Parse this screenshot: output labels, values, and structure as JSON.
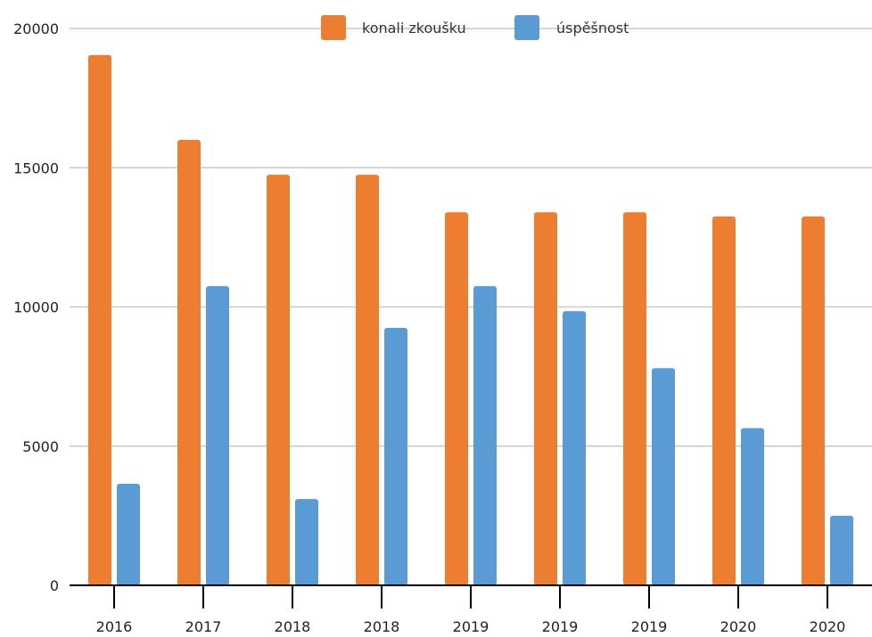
{
  "chart_data": {
    "type": "bar",
    "categories": [
      "2016",
      "2017",
      "2018",
      "2018",
      "2019",
      "2019",
      "2019",
      "2020",
      "2020"
    ],
    "series": [
      {
        "name": "konali zkoušku",
        "color": "#ed7d31",
        "values": [
          19050,
          16000,
          14750,
          14750,
          13400,
          13400,
          13400,
          13250,
          13250
        ]
      },
      {
        "name": "úspěšnost",
        "color": "#5b9bd5",
        "values": [
          3650,
          10750,
          3100,
          9250,
          10750,
          9850,
          7800,
          5650,
          2500
        ]
      }
    ],
    "ylim": [
      0,
      20000
    ],
    "yticks": [
      "0",
      "5000",
      "10000",
      "15000",
      "20000"
    ],
    "grid": true,
    "legend_position": "top-center"
  }
}
